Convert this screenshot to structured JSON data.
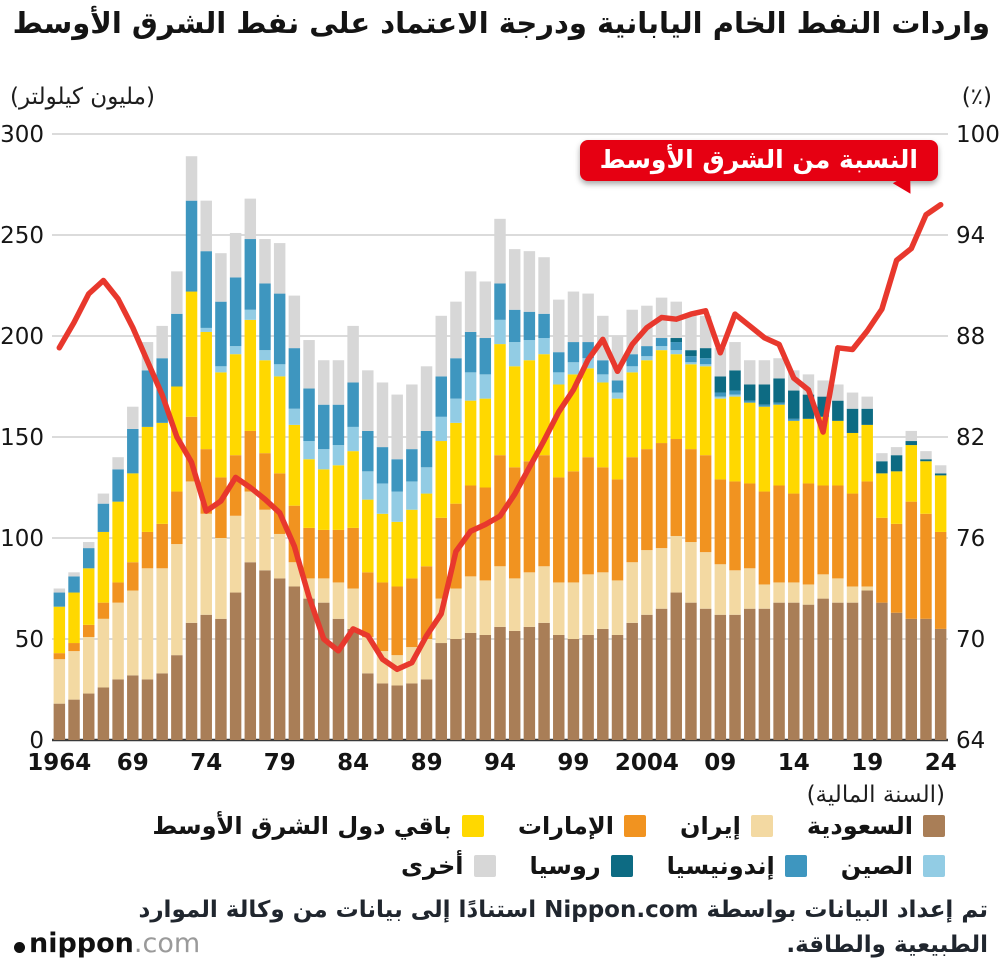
{
  "title": "واردات النفط الخام اليابانية ودرجة الاعتماد على نفط الشرق الأوسط",
  "left_axis_unit": "(مليون كيلولتر)",
  "right_axis_unit": "(٪)",
  "line_annotation": "النسبة من الشرق الأوسط",
  "x_axis_note": "(السنة المالية)",
  "footer": {
    "line1": "تم إعداد البيانات بواسطة Nippon.com استنادًا إلى بيانات من وكالة الموارد",
    "line2": "الطبيعية والطاقة."
  },
  "logo": {
    "name": "nippon",
    "tld": ".com"
  },
  "colors": {
    "line_red": "#e8382d",
    "annotation_red": "#e60012",
    "grid": "#cfcfcf",
    "axis": "#3a3a3a",
    "text": "#141414"
  },
  "chart_data": {
    "type": "bar",
    "stacked": true,
    "title": "واردات النفط الخام اليابانية ودرجة الاعتماد على نفط الشرق الأوسط",
    "year_start": 1964,
    "year_end": 2024,
    "left_axis": {
      "label": "(مليون كيلولتر)",
      "min": 0,
      "max": 300,
      "ticks": [
        0,
        50,
        100,
        150,
        200,
        250,
        300
      ]
    },
    "right_axis": {
      "label": "(٪)",
      "min": 64,
      "max": 100,
      "ticks": [
        64,
        70,
        76,
        82,
        88,
        94,
        100
      ]
    },
    "x_ticks": [
      {
        "index": 0,
        "label": "1964"
      },
      {
        "index": 5,
        "label": "69"
      },
      {
        "index": 10,
        "label": "74"
      },
      {
        "index": 15,
        "label": "79"
      },
      {
        "index": 20,
        "label": "84"
      },
      {
        "index": 25,
        "label": "89"
      },
      {
        "index": 30,
        "label": "94"
      },
      {
        "index": 35,
        "label": "99"
      },
      {
        "index": 40,
        "label": "2004"
      },
      {
        "index": 45,
        "label": "09"
      },
      {
        "index": 50,
        "label": "14"
      },
      {
        "index": 55,
        "label": "19"
      },
      {
        "index": 60,
        "label": "24"
      }
    ],
    "series": [
      {
        "name": "السعودية",
        "color": "#a97e57",
        "values": [
          18,
          20,
          23,
          26,
          30,
          32,
          30,
          33,
          42,
          58,
          62,
          60,
          73,
          88,
          84,
          80,
          76,
          70,
          68,
          60,
          55,
          33,
          28,
          27,
          28,
          30,
          48,
          50,
          53,
          52,
          56,
          54,
          56,
          58,
          52,
          50,
          52,
          55,
          52,
          58,
          62,
          65,
          73,
          68,
          65,
          62,
          62,
          65,
          65,
          68,
          68,
          67,
          70,
          68,
          68,
          74,
          68,
          63,
          60,
          60,
          55
        ]
      },
      {
        "name": "إيران",
        "color": "#f3d9a2",
        "values": [
          22,
          24,
          28,
          34,
          38,
          42,
          55,
          52,
          55,
          70,
          50,
          40,
          38,
          35,
          30,
          22,
          12,
          10,
          12,
          18,
          20,
          18,
          16,
          15,
          18,
          20,
          22,
          25,
          28,
          27,
          30,
          26,
          27,
          28,
          26,
          28,
          30,
          28,
          27,
          30,
          32,
          30,
          28,
          30,
          28,
          25,
          22,
          20,
          12,
          10,
          10,
          10,
          12,
          12,
          8,
          2,
          0,
          0,
          0,
          0,
          0
        ]
      },
      {
        "name": "الإمارات",
        "color": "#f19320",
        "values": [
          3,
          4,
          6,
          8,
          10,
          14,
          18,
          22,
          26,
          32,
          32,
          30,
          30,
          30,
          28,
          30,
          28,
          25,
          24,
          26,
          30,
          32,
          34,
          34,
          34,
          36,
          40,
          42,
          45,
          46,
          55,
          55,
          55,
          55,
          52,
          55,
          58,
          52,
          50,
          52,
          50,
          52,
          48,
          46,
          48,
          42,
          44,
          42,
          46,
          48,
          44,
          50,
          44,
          46,
          46,
          52,
          42,
          44,
          58,
          52,
          48
        ]
      },
      {
        "name": "باقي دول الشرق الأوسط",
        "color": "#ffd800",
        "values": [
          23,
          25,
          28,
          35,
          40,
          44,
          52,
          50,
          52,
          62,
          58,
          52,
          50,
          55,
          46,
          48,
          40,
          34,
          30,
          32,
          38,
          36,
          34,
          32,
          34,
          36,
          38,
          40,
          42,
          44,
          55,
          50,
          50,
          50,
          46,
          48,
          44,
          42,
          40,
          42,
          44,
          46,
          42,
          42,
          44,
          40,
          42,
          40,
          42,
          40,
          36,
          32,
          34,
          32,
          30,
          28,
          22,
          26,
          28,
          26,
          28
        ]
      },
      {
        "name": "الصين",
        "color": "#92cce4",
        "values": [
          0,
          0,
          0,
          0,
          0,
          0,
          0,
          0,
          0,
          0,
          2,
          3,
          4,
          5,
          5,
          6,
          8,
          9,
          10,
          10,
          12,
          14,
          15,
          15,
          14,
          13,
          12,
          12,
          14,
          12,
          12,
          12,
          10,
          8,
          6,
          6,
          5,
          4,
          3,
          3,
          2,
          2,
          2,
          1,
          1,
          1,
          1,
          0,
          0,
          0,
          0,
          0,
          0,
          0,
          0,
          0,
          0,
          0,
          0,
          0,
          0
        ]
      },
      {
        "name": "إندونيسيا",
        "color": "#3e96bf",
        "values": [
          7,
          8,
          10,
          14,
          16,
          22,
          28,
          32,
          36,
          45,
          38,
          32,
          34,
          35,
          33,
          35,
          30,
          26,
          22,
          20,
          22,
          20,
          18,
          16,
          16,
          18,
          20,
          20,
          20,
          18,
          18,
          16,
          14,
          12,
          10,
          10,
          8,
          7,
          6,
          6,
          5,
          4,
          4,
          3,
          3,
          2,
          2,
          1,
          1,
          1,
          1,
          0,
          0,
          0,
          0,
          0,
          0,
          0,
          0,
          0,
          0
        ]
      },
      {
        "name": "روسيا",
        "color": "#0d6b83",
        "values": [
          0,
          0,
          0,
          0,
          0,
          0,
          0,
          0,
          0,
          0,
          0,
          0,
          0,
          0,
          0,
          0,
          0,
          0,
          0,
          0,
          0,
          0,
          0,
          0,
          0,
          0,
          0,
          0,
          0,
          0,
          0,
          0,
          0,
          0,
          0,
          0,
          0,
          0,
          0,
          0,
          0,
          0,
          2,
          3,
          5,
          8,
          10,
          8,
          10,
          12,
          14,
          12,
          10,
          10,
          12,
          8,
          6,
          8,
          2,
          1,
          1
        ]
      },
      {
        "name": "أخرى",
        "color": "#d7d7d7",
        "values": [
          2,
          2,
          3,
          5,
          6,
          11,
          14,
          16,
          21,
          22,
          25,
          24,
          22,
          20,
          22,
          25,
          26,
          24,
          22,
          22,
          28,
          30,
          32,
          32,
          32,
          32,
          30,
          28,
          30,
          28,
          32,
          30,
          30,
          28,
          26,
          25,
          24,
          22,
          22,
          22,
          20,
          20,
          18,
          18,
          16,
          14,
          14,
          12,
          12,
          10,
          10,
          10,
          8,
          8,
          8,
          6,
          4,
          4,
          5,
          4,
          4
        ]
      }
    ],
    "line": {
      "name": "النسبة من الشرق الأوسط",
      "color": "#e8382d",
      "axis": "right",
      "values": [
        87.3,
        88.8,
        90.5,
        91.3,
        90.2,
        88.5,
        86.5,
        84.5,
        82,
        80.5,
        77.6,
        78.2,
        79.6,
        79,
        78.3,
        77.5,
        75.5,
        72.5,
        70,
        69.3,
        70.6,
        70.2,
        68.8,
        68.2,
        68.6,
        70.2,
        71.5,
        75.2,
        76.4,
        76.8,
        77.3,
        78.6,
        80.2,
        81.8,
        83.5,
        84.8,
        86.6,
        87.8,
        85.9,
        87.5,
        88.5,
        89.1,
        89,
        89.3,
        89.5,
        87,
        89.3,
        88.6,
        87.9,
        87.5,
        85.5,
        84.8,
        82.3,
        87.3,
        87.2,
        88.3,
        89.6,
        92.5,
        93.2,
        95.2,
        95.8
      ]
    },
    "legend_rows": [
      [
        "السعودية",
        "إيران",
        "الإمارات",
        "باقي دول الشرق الأوسط"
      ],
      [
        "الصين",
        "إندونيسيا",
        "روسيا",
        "أخرى"
      ]
    ]
  }
}
